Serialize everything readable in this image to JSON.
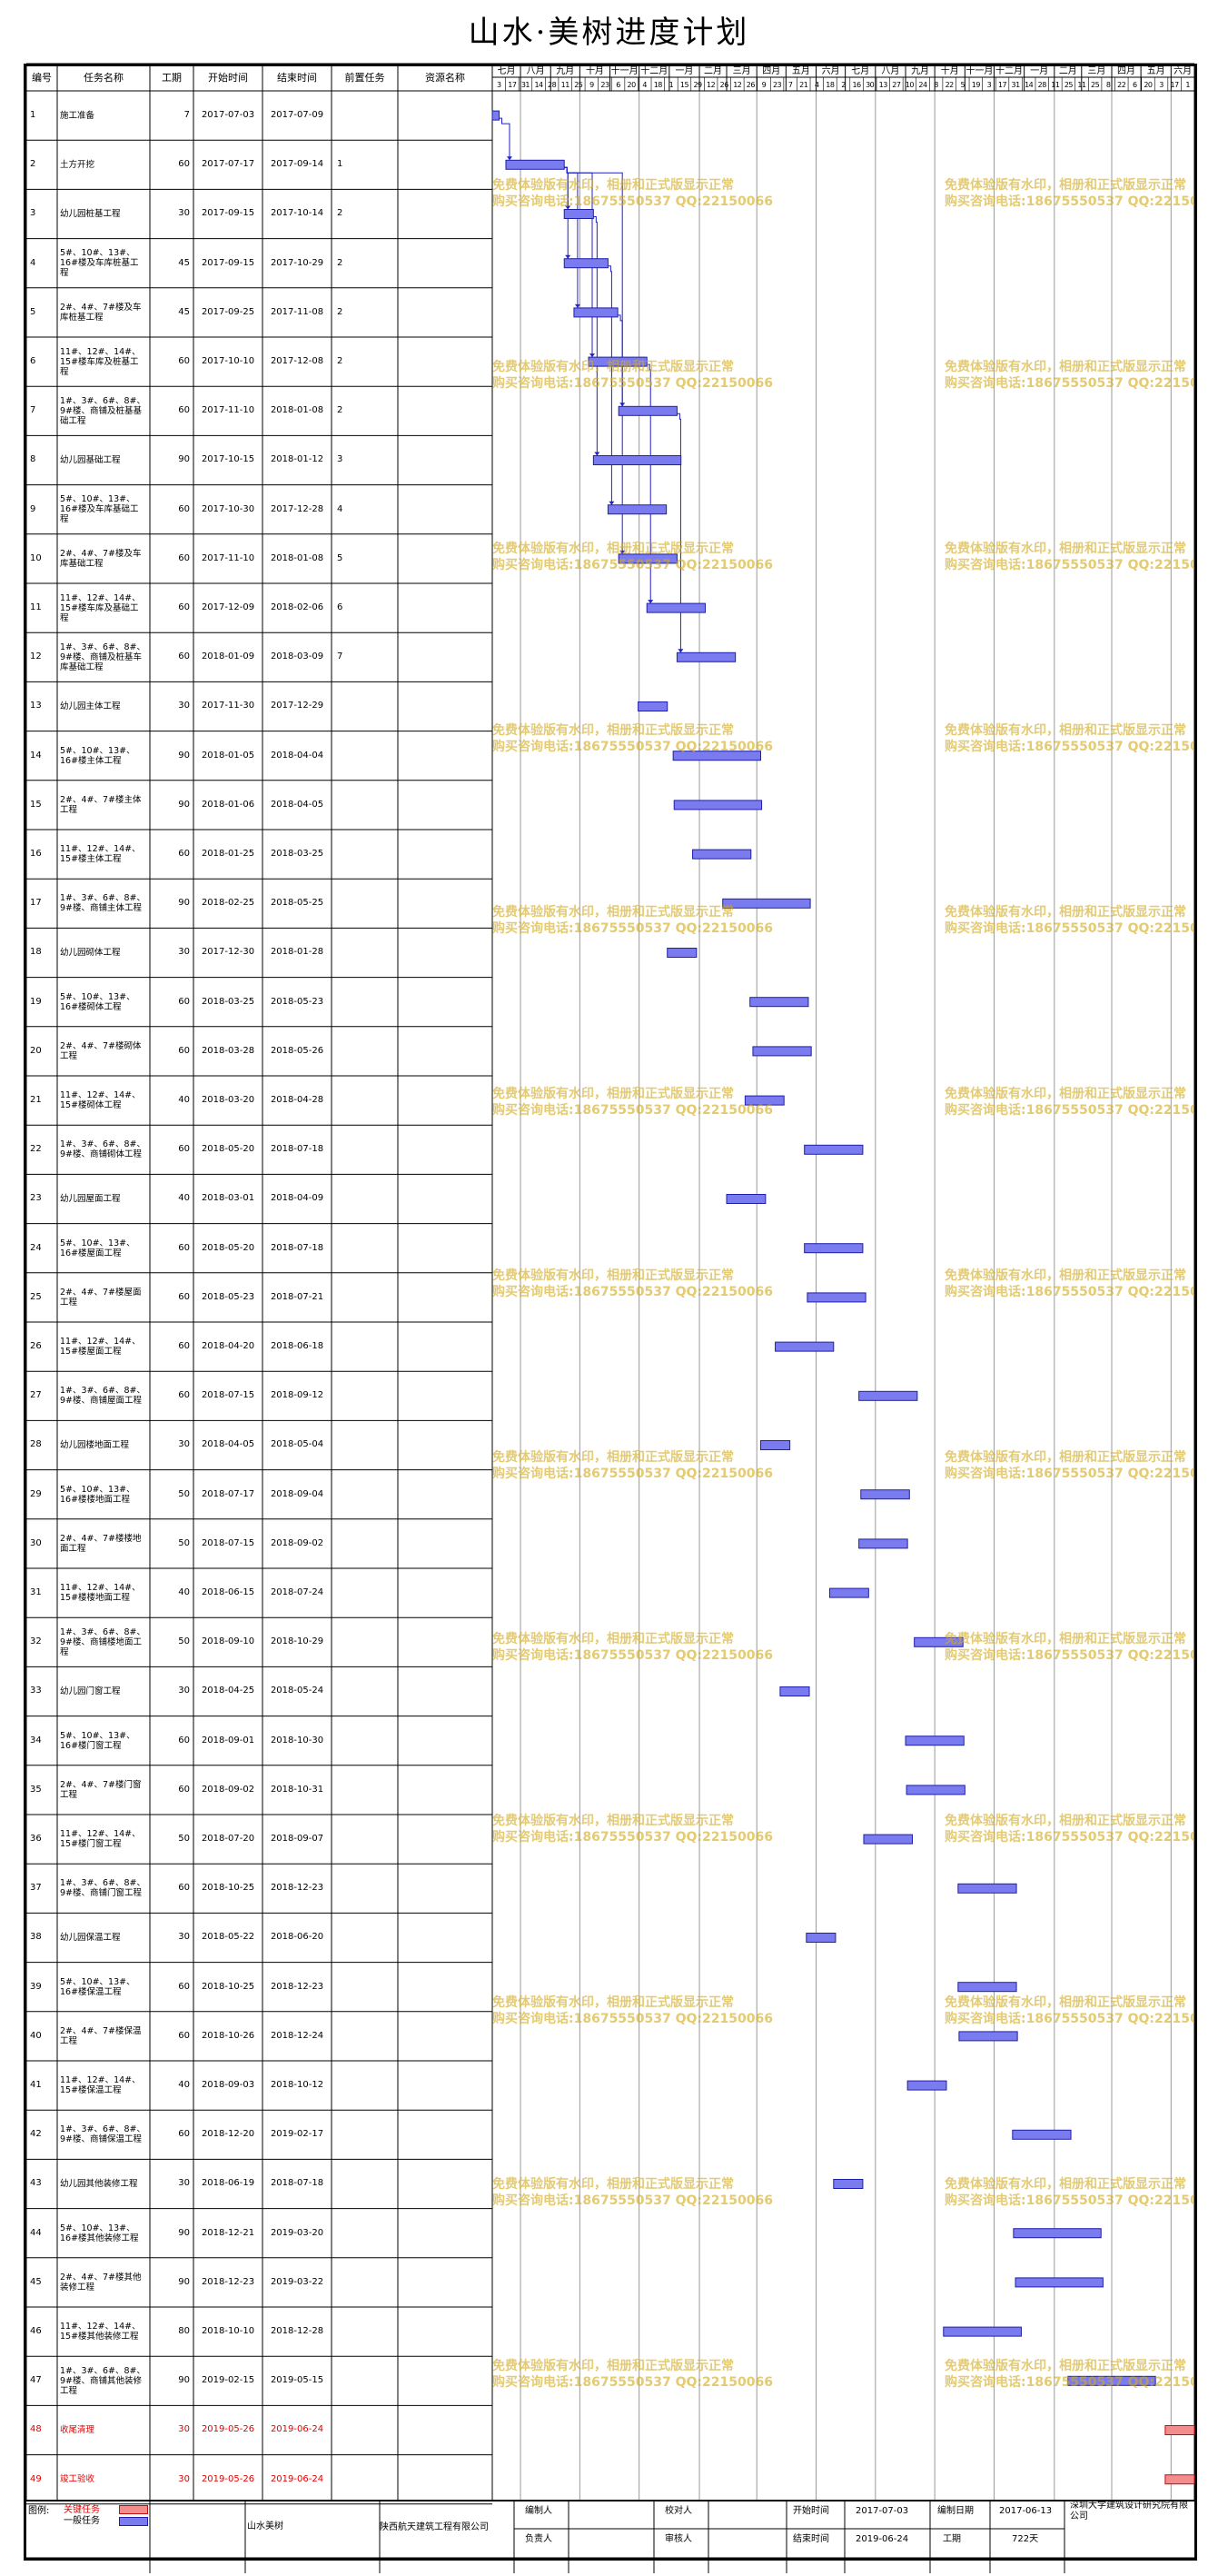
{
  "title": "山水·美树进度计划",
  "columns": [
    "编号",
    "任务名称",
    "工期",
    "开始时间",
    "结束时间",
    "前置任务",
    "资源名称"
  ],
  "months": [
    "七月",
    "八月",
    "九月",
    "十月",
    "十一月",
    "十二月",
    "一月",
    "二月",
    "三月",
    "四月",
    "五月",
    "六月",
    "七月",
    "八月",
    "九月",
    "十月",
    "十一月",
    "十二月",
    "一月",
    "二月",
    "三月",
    "四月",
    "五月",
    "六月"
  ],
  "month_days": [
    "3",
    "17",
    "31",
    "14",
    "28",
    "11",
    "25",
    "9",
    "23",
    "6",
    "20",
    "4",
    "18",
    "1",
    "15",
    "29",
    "12",
    "26",
    "12",
    "26",
    "9",
    "23",
    "7",
    "21",
    "4",
    "18",
    "2",
    "16",
    "30",
    "13",
    "27",
    "10",
    "24",
    "8",
    "22",
    "5",
    "19",
    "3",
    "17",
    "31",
    "14",
    "28",
    "11",
    "25",
    "11",
    "25",
    "8",
    "22",
    "6",
    "20",
    "3",
    "17",
    "1"
  ],
  "timeline": {
    "start": "2017-07-03",
    "end": "2019-06-24"
  },
  "tasks": [
    {
      "id": "1",
      "name": "施工准备",
      "dur": "7",
      "start": "2017-07-03",
      "end": "2017-07-09",
      "pred": "",
      "res": "",
      "critical": false
    },
    {
      "id": "2",
      "name": "土方开挖",
      "dur": "60",
      "start": "2017-07-17",
      "end": "2017-09-14",
      "pred": "1",
      "res": "",
      "critical": false
    },
    {
      "id": "3",
      "name": "幼儿园桩基工程",
      "dur": "30",
      "start": "2017-09-15",
      "end": "2017-10-14",
      "pred": "2",
      "res": "",
      "critical": false
    },
    {
      "id": "4",
      "name": "5#、10#、13#、16#楼及车库桩基工程",
      "dur": "45",
      "start": "2017-09-15",
      "end": "2017-10-29",
      "pred": "2",
      "res": "",
      "critical": false
    },
    {
      "id": "5",
      "name": "2#、4#、7#楼及车库桩基工程",
      "dur": "45",
      "start": "2017-09-25",
      "end": "2017-11-08",
      "pred": "2",
      "res": "",
      "critical": false
    },
    {
      "id": "6",
      "name": "11#、12#、14#、15#楼车库及桩基工程",
      "dur": "60",
      "start": "2017-10-10",
      "end": "2017-12-08",
      "pred": "2",
      "res": "",
      "critical": false
    },
    {
      "id": "7",
      "name": "1#、3#、6#、8#、9#楼、商铺及桩基基础工程",
      "dur": "60",
      "start": "2017-11-10",
      "end": "2018-01-08",
      "pred": "2",
      "res": "",
      "critical": false
    },
    {
      "id": "8",
      "name": "幼儿园基础工程",
      "dur": "90",
      "start": "2017-10-15",
      "end": "2018-01-12",
      "pred": "3",
      "res": "",
      "critical": false
    },
    {
      "id": "9",
      "name": "5#、10#、13#、16#楼及车库基础工程",
      "dur": "60",
      "start": "2017-10-30",
      "end": "2017-12-28",
      "pred": "4",
      "res": "",
      "critical": false
    },
    {
      "id": "10",
      "name": "2#、4#、7#楼及车库基础工程",
      "dur": "60",
      "start": "2017-11-10",
      "end": "2018-01-08",
      "pred": "5",
      "res": "",
      "critical": false
    },
    {
      "id": "11",
      "name": "11#、12#、14#、15#楼车库及基础工程",
      "dur": "60",
      "start": "2017-12-09",
      "end": "2018-02-06",
      "pred": "6",
      "res": "",
      "critical": false
    },
    {
      "id": "12",
      "name": "1#、3#、6#、8#、9#楼、商铺及桩基车库基础工程",
      "dur": "60",
      "start": "2018-01-09",
      "end": "2018-03-09",
      "pred": "7",
      "res": "",
      "critical": false
    },
    {
      "id": "13",
      "name": "幼儿园主体工程",
      "dur": "30",
      "start": "2017-11-30",
      "end": "2017-12-29",
      "pred": "",
      "res": "",
      "critical": false
    },
    {
      "id": "14",
      "name": "5#、10#、13#、16#楼主体工程",
      "dur": "90",
      "start": "2018-01-05",
      "end": "2018-04-04",
      "pred": "",
      "res": "",
      "critical": false
    },
    {
      "id": "15",
      "name": "2#、4#、7#楼主体工程",
      "dur": "90",
      "start": "2018-01-06",
      "end": "2018-04-05",
      "pred": "",
      "res": "",
      "critical": false
    },
    {
      "id": "16",
      "name": "11#、12#、14#、15#楼主体工程",
      "dur": "60",
      "start": "2018-01-25",
      "end": "2018-03-25",
      "pred": "",
      "res": "",
      "critical": false
    },
    {
      "id": "17",
      "name": "1#、3#、6#、8#、9#楼、商铺主体工程",
      "dur": "90",
      "start": "2018-02-25",
      "end": "2018-05-25",
      "pred": "",
      "res": "",
      "critical": false
    },
    {
      "id": "18",
      "name": "幼儿园砌体工程",
      "dur": "30",
      "start": "2017-12-30",
      "end": "2018-01-28",
      "pred": "",
      "res": "",
      "critical": false
    },
    {
      "id": "19",
      "name": "5#、10#、13#、16#楼砌体工程",
      "dur": "60",
      "start": "2018-03-25",
      "end": "2018-05-23",
      "pred": "",
      "res": "",
      "critical": false
    },
    {
      "id": "20",
      "name": "2#、4#、7#楼砌体工程",
      "dur": "60",
      "start": "2018-03-28",
      "end": "2018-05-26",
      "pred": "",
      "res": "",
      "critical": false
    },
    {
      "id": "21",
      "name": "11#、12#、14#、15#楼砌体工程",
      "dur": "40",
      "start": "2018-03-20",
      "end": "2018-04-28",
      "pred": "",
      "res": "",
      "critical": false
    },
    {
      "id": "22",
      "name": "1#、3#、6#、8#、9#楼、商铺砌体工程",
      "dur": "60",
      "start": "2018-05-20",
      "end": "2018-07-18",
      "pred": "",
      "res": "",
      "critical": false
    },
    {
      "id": "23",
      "name": "幼儿园屋面工程",
      "dur": "40",
      "start": "2018-03-01",
      "end": "2018-04-09",
      "pred": "",
      "res": "",
      "critical": false
    },
    {
      "id": "24",
      "name": "5#、10#、13#、16#楼屋面工程",
      "dur": "60",
      "start": "2018-05-20",
      "end": "2018-07-18",
      "pred": "",
      "res": "",
      "critical": false
    },
    {
      "id": "25",
      "name": "2#、4#、7#楼屋面工程",
      "dur": "60",
      "start": "2018-05-23",
      "end": "2018-07-21",
      "pred": "",
      "res": "",
      "critical": false
    },
    {
      "id": "26",
      "name": "11#、12#、14#、15#楼屋面工程",
      "dur": "60",
      "start": "2018-04-20",
      "end": "2018-06-18",
      "pred": "",
      "res": "",
      "critical": false
    },
    {
      "id": "27",
      "name": "1#、3#、6#、8#、9#楼、商铺屋面工程",
      "dur": "60",
      "start": "2018-07-15",
      "end": "2018-09-12",
      "pred": "",
      "res": "",
      "critical": false
    },
    {
      "id": "28",
      "name": "幼儿园楼地面工程",
      "dur": "30",
      "start": "2018-04-05",
      "end": "2018-05-04",
      "pred": "",
      "res": "",
      "critical": false
    },
    {
      "id": "29",
      "name": "5#、10#、13#、16#楼楼地面工程",
      "dur": "50",
      "start": "2018-07-17",
      "end": "2018-09-04",
      "pred": "",
      "res": "",
      "critical": false
    },
    {
      "id": "30",
      "name": "2#、4#、7#楼楼地面工程",
      "dur": "50",
      "start": "2018-07-15",
      "end": "2018-09-02",
      "pred": "",
      "res": "",
      "critical": false
    },
    {
      "id": "31",
      "name": "11#、12#、14#、15#楼楼地面工程",
      "dur": "40",
      "start": "2018-06-15",
      "end": "2018-07-24",
      "pred": "",
      "res": "",
      "critical": false
    },
    {
      "id": "32",
      "name": "1#、3#、6#、8#、9#楼、商铺楼地面工程",
      "dur": "50",
      "start": "2018-09-10",
      "end": "2018-10-29",
      "pred": "",
      "res": "",
      "critical": false
    },
    {
      "id": "33",
      "name": "幼儿园门窗工程",
      "dur": "30",
      "start": "2018-04-25",
      "end": "2018-05-24",
      "pred": "",
      "res": "",
      "critical": false
    },
    {
      "id": "34",
      "name": "5#、10#、13#、16#楼门窗工程",
      "dur": "60",
      "start": "2018-09-01",
      "end": "2018-10-30",
      "pred": "",
      "res": "",
      "critical": false
    },
    {
      "id": "35",
      "name": "2#、4#、7#楼门窗工程",
      "dur": "60",
      "start": "2018-09-02",
      "end": "2018-10-31",
      "pred": "",
      "res": "",
      "critical": false
    },
    {
      "id": "36",
      "name": "11#、12#、14#、15#楼门窗工程",
      "dur": "50",
      "start": "2018-07-20",
      "end": "2018-09-07",
      "pred": "",
      "res": "",
      "critical": false
    },
    {
      "id": "37",
      "name": "1#、3#、6#、8#、9#楼、商铺门窗工程",
      "dur": "60",
      "start": "2018-10-25",
      "end": "2018-12-23",
      "pred": "",
      "res": "",
      "critical": false
    },
    {
      "id": "38",
      "name": "幼儿园保温工程",
      "dur": "30",
      "start": "2018-05-22",
      "end": "2018-06-20",
      "pred": "",
      "res": "",
      "critical": false
    },
    {
      "id": "39",
      "name": "5#、10#、13#、16#楼保温工程",
      "dur": "60",
      "start": "2018-10-25",
      "end": "2018-12-23",
      "pred": "",
      "res": "",
      "critical": false
    },
    {
      "id": "40",
      "name": "2#、4#、7#楼保温工程",
      "dur": "60",
      "start": "2018-10-26",
      "end": "2018-12-24",
      "pred": "",
      "res": "",
      "critical": false
    },
    {
      "id": "41",
      "name": "11#、12#、14#、15#楼保温工程",
      "dur": "40",
      "start": "2018-09-03",
      "end": "2018-10-12",
      "pred": "",
      "res": "",
      "critical": false
    },
    {
      "id": "42",
      "name": "1#、3#、6#、8#、9#楼、商铺保温工程",
      "dur": "60",
      "start": "2018-12-20",
      "end": "2019-02-17",
      "pred": "",
      "res": "",
      "critical": false
    },
    {
      "id": "43",
      "name": "幼儿园其他装修工程",
      "dur": "30",
      "start": "2018-06-19",
      "end": "2018-07-18",
      "pred": "",
      "res": "",
      "critical": false
    },
    {
      "id": "44",
      "name": "5#、10#、13#、16#楼其他装修工程",
      "dur": "90",
      "start": "2018-12-21",
      "end": "2019-03-20",
      "pred": "",
      "res": "",
      "critical": false
    },
    {
      "id": "45",
      "name": "2#、4#、7#楼其他装修工程",
      "dur": "90",
      "start": "2018-12-23",
      "end": "2019-03-22",
      "pred": "",
      "res": "",
      "critical": false
    },
    {
      "id": "46",
      "name": "11#、12#、14#、15#楼其他装修工程",
      "dur": "80",
      "start": "2018-10-10",
      "end": "2018-12-28",
      "pred": "",
      "res": "",
      "critical": false
    },
    {
      "id": "47",
      "name": "1#、3#、6#、8#、9#楼、商铺其他装修工程",
      "dur": "90",
      "start": "2019-02-15",
      "end": "2019-05-15",
      "pred": "",
      "res": "",
      "critical": false
    },
    {
      "id": "48",
      "name": "收尾清理",
      "dur": "30",
      "start": "2019-05-26",
      "end": "2019-06-24",
      "pred": "",
      "res": "",
      "critical": true
    },
    {
      "id": "49",
      "name": "竣工验收",
      "dur": "30",
      "start": "2019-05-26",
      "end": "2019-06-24",
      "pred": "",
      "res": "",
      "critical": true
    }
  ],
  "watermark": {
    "line1": "免费体验版有水印，相册和正式版显示正常",
    "line2": "购买咨询电话:18675550537 QQ:22150066"
  },
  "footer": {
    "legend_label": "图例:",
    "legend_critical": "关键任务",
    "legend_normal": "一般任务",
    "project": "山水美树",
    "company": "陕西航天建筑工程有限公司",
    "editor_label": "编制人",
    "checker_label": "校对人",
    "principal_label": "负责人",
    "reviewer_label": "审核人",
    "start_label": "开始时间",
    "start_value": "2017-07-03",
    "end_label": "结束时间",
    "end_value": "2019-06-24",
    "compile_date_label": "编制日期",
    "compile_date_value": "2017-06-13",
    "duration_label": "工期",
    "duration_value": "722天",
    "designer": "深圳大学建筑设计研究院有限公司"
  },
  "colors": {
    "normal_bar": "#7b7bf0",
    "normal_border": "#1f1fa8",
    "critical_bar": "#f38c8c",
    "critical_border": "#c01010",
    "critical_text": "#e00000",
    "link": "#2020c8"
  }
}
